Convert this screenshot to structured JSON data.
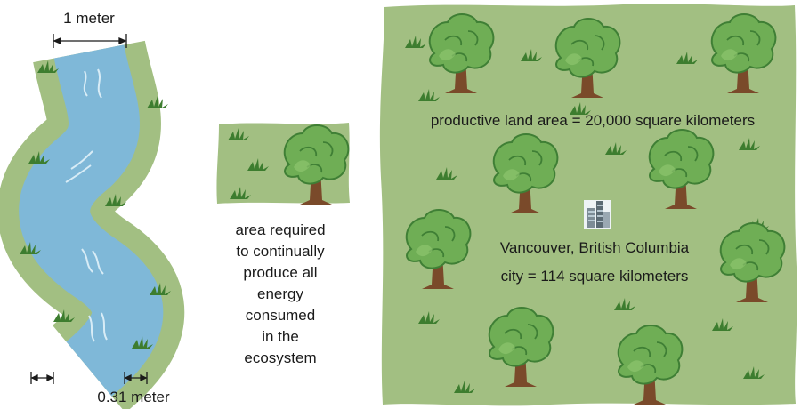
{
  "river": {
    "width_label": "1 meter",
    "bank_label": "0.31 meter"
  },
  "legend": {
    "caption_lines": [
      "area required",
      "to continually",
      "produce all",
      "energy",
      "consumed",
      "in the",
      "ecosystem"
    ]
  },
  "map": {
    "land_label": "productive land area = 20,000 square kilometers",
    "city_name": "Vancouver, British Columbia",
    "city_label": "city = 114 square kilometers"
  }
}
